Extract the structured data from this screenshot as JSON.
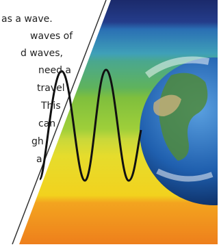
{
  "text_lines": [
    "as a wave.",
    "waves of",
    "d waves,",
    "need a",
    "travel",
    "This",
    "can",
    "gh",
    "a"
  ]
}
